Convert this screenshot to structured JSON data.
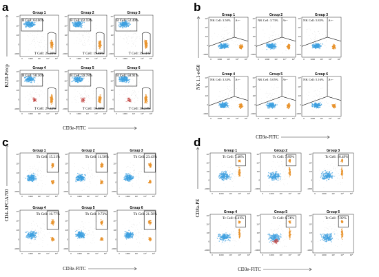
{
  "panels": [
    {
      "letter": "a",
      "kind": "bt",
      "xlabel": "CD3e-FITC",
      "ylabel": "B220-Percp",
      "plots": [
        {
          "title": "Group 1",
          "labels": [
            "B Cell: 64.66%",
            "T Cell: 25.20%"
          ]
        },
        {
          "title": "Group 2",
          "labels": [
            "B Cell: 62.59%",
            "T Cell: 19.88%"
          ]
        },
        {
          "title": "Group 3",
          "labels": [
            "B Cell: 52.49%",
            "T Cell: 39.11%"
          ]
        },
        {
          "title": "Group 4",
          "labels": [
            "B Cell: 58.16%",
            "T Cell: 27.33%"
          ]
        },
        {
          "title": "Group 5",
          "labels": [
            "B Cell: 59.78%",
            "T Cell: 16.69%"
          ]
        },
        {
          "title": "Group 6",
          "labels": [
            "B Cell: 58.91%",
            "T Cell: 30.24%"
          ]
        }
      ]
    },
    {
      "letter": "b",
      "kind": "nk",
      "xlabel": "CD3e-FITC",
      "ylabel": "NK 1.1-e450",
      "plots": [
        {
          "title": "Group 1",
          "labels": [
            "NK Cell: 3.50%",
            "A+-"
          ]
        },
        {
          "title": "Group 2",
          "labels": [
            "NK Cell: 3.73%",
            "A+-"
          ]
        },
        {
          "title": "Group 3",
          "labels": [
            "NK Cell: 5.85%",
            "A+-"
          ]
        },
        {
          "title": "Group 4",
          "labels": [
            "NK Cell: 3.33%",
            "A+-"
          ]
        },
        {
          "title": "Group 5",
          "labels": [
            "NK Cell: 5.05%",
            "A+-"
          ]
        },
        {
          "title": "Group 6",
          "labels": [
            "NK Cell: 5.16%",
            "A+-"
          ]
        }
      ]
    },
    {
      "letter": "c",
      "kind": "th",
      "xlabel": "CD3e-FITC",
      "ylabel": "CD4-APC/A700",
      "plots": [
        {
          "title": "Group 1",
          "labels": [
            "Th Cell: 15.21%"
          ]
        },
        {
          "title": "Group 2",
          "labels": [
            "Th Cell: 11.58%"
          ]
        },
        {
          "title": "Group 3",
          "labels": [
            "Th Cell: 23.43%"
          ]
        },
        {
          "title": "Group 4",
          "labels": [
            "Th Cell: 16.77%"
          ]
        },
        {
          "title": "Group 5",
          "labels": [
            "Th Cell: 9.73%"
          ]
        },
        {
          "title": "Group 6",
          "labels": [
            "Th Cell: 21.58%"
          ]
        }
      ]
    },
    {
      "letter": "d",
      "kind": "tc",
      "xlabel": "CD3e-FITC",
      "ylabel": "CD8a-PE",
      "plots": [
        {
          "title": "Group 1",
          "labels": [
            "Tc Cell: 7.40%"
          ]
        },
        {
          "title": "Group 2",
          "labels": [
            "Tc Cell: 7.89%"
          ]
        },
        {
          "title": "Group 3",
          "labels": [
            "Tc Cell: 10.49%"
          ]
        },
        {
          "title": "Group 4",
          "labels": [
            "Tc Cell: 6.41%"
          ]
        },
        {
          "title": "Group 5",
          "labels": [
            "Tc Cell: 6.74%"
          ]
        },
        {
          "title": "Group 6",
          "labels": [
            "Tc Cell: 7.92%"
          ]
        }
      ]
    }
  ],
  "ticks": {
    "x": [
      "0",
      "1000",
      "10³",
      "10⁴",
      "10⁵"
    ],
    "y": [
      "10⁵",
      "10⁴",
      "10³",
      "0",
      "-1000"
    ]
  },
  "colors": {
    "blue_population": "#3ea0e0",
    "orange_population": "#e8922a",
    "red_population": "#c2403c",
    "background_events": "#8a8a8a"
  }
}
